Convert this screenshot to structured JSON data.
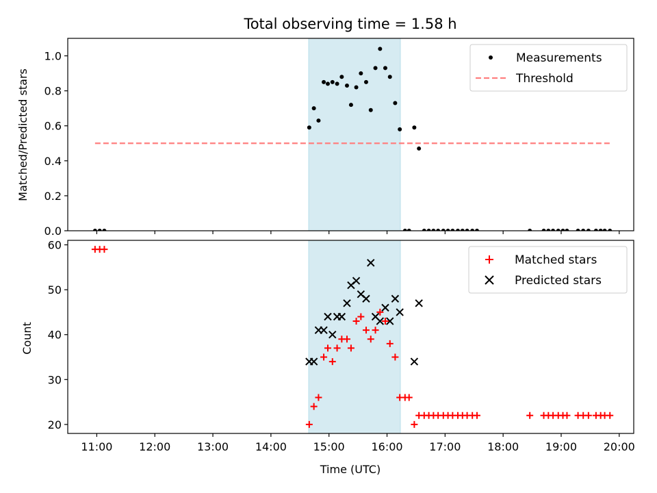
{
  "chart_data": [
    {
      "type": "scatter",
      "title": "Total observing time = 1.58 h",
      "xlabel": "",
      "ylabel": "Matched/Predicted stars",
      "xlim": [
        10.5,
        20.25
      ],
      "ylim": [
        0,
        1.1
      ],
      "yticks": [
        0.0,
        0.2,
        0.4,
        0.6,
        0.8,
        1.0
      ],
      "ytick_labels": [
        "0.0",
        "0.2",
        "0.4",
        "0.6",
        "0.8",
        "1.0"
      ],
      "shaded_span": {
        "x0": 14.65,
        "x1": 16.23,
        "color": "#add8e6"
      },
      "legend_position": "upper right",
      "series": [
        {
          "name": "Measurements",
          "marker": "dot",
          "color": "#000000",
          "points": [
            [
              10.97,
              0
            ],
            [
              11.05,
              0
            ],
            [
              11.13,
              0
            ],
            [
              14.66,
              0.59
            ],
            [
              14.74,
              0.7
            ],
            [
              14.82,
              0.63
            ],
            [
              14.91,
              0.85
            ],
            [
              14.98,
              0.84
            ],
            [
              15.06,
              0.85
            ],
            [
              15.14,
              0.84
            ],
            [
              15.22,
              0.88
            ],
            [
              15.31,
              0.83
            ],
            [
              15.38,
              0.72
            ],
            [
              15.47,
              0.82
            ],
            [
              15.55,
              0.9
            ],
            [
              15.64,
              0.85
            ],
            [
              15.72,
              0.69
            ],
            [
              15.8,
              0.93
            ],
            [
              15.88,
              1.04
            ],
            [
              15.97,
              0.93
            ],
            [
              16.05,
              0.88
            ],
            [
              16.14,
              0.73
            ],
            [
              16.22,
              0.58
            ],
            [
              16.31,
              0
            ],
            [
              16.38,
              0
            ],
            [
              16.47,
              0.59
            ],
            [
              16.55,
              0.47
            ],
            [
              16.64,
              0
            ],
            [
              16.72,
              0
            ],
            [
              16.8,
              0
            ],
            [
              16.88,
              0
            ],
            [
              16.97,
              0
            ],
            [
              17.05,
              0
            ],
            [
              17.13,
              0
            ],
            [
              17.22,
              0
            ],
            [
              17.3,
              0
            ],
            [
              17.38,
              0
            ],
            [
              17.47,
              0
            ],
            [
              17.55,
              0
            ],
            [
              18.46,
              0
            ],
            [
              18.7,
              0
            ],
            [
              18.78,
              0
            ],
            [
              18.86,
              0
            ],
            [
              18.95,
              0
            ],
            [
              19.03,
              0
            ],
            [
              19.1,
              0
            ],
            [
              19.29,
              0
            ],
            [
              19.38,
              0
            ],
            [
              19.47,
              0
            ],
            [
              19.6,
              0
            ],
            [
              19.68,
              0
            ],
            [
              19.75,
              0
            ],
            [
              19.84,
              0
            ]
          ]
        },
        {
          "name": "Threshold",
          "marker": "dashed-line",
          "color": "#ff7f7f",
          "points": [
            [
              10.97,
              0.5
            ],
            [
              19.84,
              0.5
            ]
          ]
        }
      ]
    },
    {
      "type": "scatter",
      "title": "",
      "xlabel": "Time (UTC)",
      "ylabel": "Count",
      "xlim": [
        10.5,
        20.25
      ],
      "ylim": [
        18,
        61
      ],
      "yticks": [
        20,
        30,
        40,
        50,
        60
      ],
      "ytick_labels": [
        "20",
        "30",
        "40",
        "50",
        "60"
      ],
      "xticks": [
        11,
        12,
        13,
        14,
        15,
        16,
        17,
        18,
        19,
        20
      ],
      "xtick_labels": [
        "11:00",
        "12:00",
        "13:00",
        "14:00",
        "15:00",
        "16:00",
        "17:00",
        "18:00",
        "19:00",
        "20:00"
      ],
      "shaded_span": {
        "x0": 14.65,
        "x1": 16.23,
        "color": "#add8e6"
      },
      "legend_position": "upper right",
      "series": [
        {
          "name": "Matched stars",
          "marker": "plus",
          "color": "#ff0000",
          "points": [
            [
              10.97,
              59
            ],
            [
              11.05,
              59
            ],
            [
              11.13,
              59
            ],
            [
              14.66,
              20
            ],
            [
              14.74,
              24
            ],
            [
              14.82,
              26
            ],
            [
              14.91,
              35
            ],
            [
              14.98,
              37
            ],
            [
              15.06,
              34
            ],
            [
              15.14,
              37
            ],
            [
              15.22,
              39
            ],
            [
              15.31,
              39
            ],
            [
              15.38,
              37
            ],
            [
              15.47,
              43
            ],
            [
              15.55,
              44
            ],
            [
              15.64,
              41
            ],
            [
              15.72,
              39
            ],
            [
              15.8,
              41
            ],
            [
              15.88,
              45
            ],
            [
              15.97,
              43
            ],
            [
              16.05,
              38
            ],
            [
              16.14,
              35
            ],
            [
              16.22,
              26
            ],
            [
              16.31,
              26
            ],
            [
              16.38,
              26
            ],
            [
              16.47,
              20
            ],
            [
              16.55,
              22
            ],
            [
              16.64,
              22
            ],
            [
              16.72,
              22
            ],
            [
              16.8,
              22
            ],
            [
              16.88,
              22
            ],
            [
              16.97,
              22
            ],
            [
              17.05,
              22
            ],
            [
              17.13,
              22
            ],
            [
              17.22,
              22
            ],
            [
              17.3,
              22
            ],
            [
              17.38,
              22
            ],
            [
              17.47,
              22
            ],
            [
              17.55,
              22
            ],
            [
              18.46,
              22
            ],
            [
              18.7,
              22
            ],
            [
              18.78,
              22
            ],
            [
              18.86,
              22
            ],
            [
              18.95,
              22
            ],
            [
              19.03,
              22
            ],
            [
              19.1,
              22
            ],
            [
              19.29,
              22
            ],
            [
              19.38,
              22
            ],
            [
              19.47,
              22
            ],
            [
              19.6,
              22
            ],
            [
              19.68,
              22
            ],
            [
              19.75,
              22
            ],
            [
              19.84,
              22
            ]
          ]
        },
        {
          "name": "Predicted stars",
          "marker": "x",
          "color": "#000000",
          "points": [
            [
              14.66,
              34
            ],
            [
              14.74,
              34
            ],
            [
              14.82,
              41
            ],
            [
              14.91,
              41
            ],
            [
              14.98,
              44
            ],
            [
              15.06,
              40
            ],
            [
              15.14,
              44
            ],
            [
              15.22,
              44
            ],
            [
              15.31,
              47
            ],
            [
              15.38,
              51
            ],
            [
              15.47,
              52
            ],
            [
              15.55,
              49
            ],
            [
              15.64,
              48
            ],
            [
              15.72,
              56
            ],
            [
              15.8,
              44
            ],
            [
              15.88,
              43
            ],
            [
              15.97,
              46
            ],
            [
              16.05,
              43
            ],
            [
              16.14,
              48
            ],
            [
              16.22,
              45
            ],
            [
              16.47,
              34
            ],
            [
              16.55,
              47
            ]
          ]
        }
      ]
    }
  ]
}
